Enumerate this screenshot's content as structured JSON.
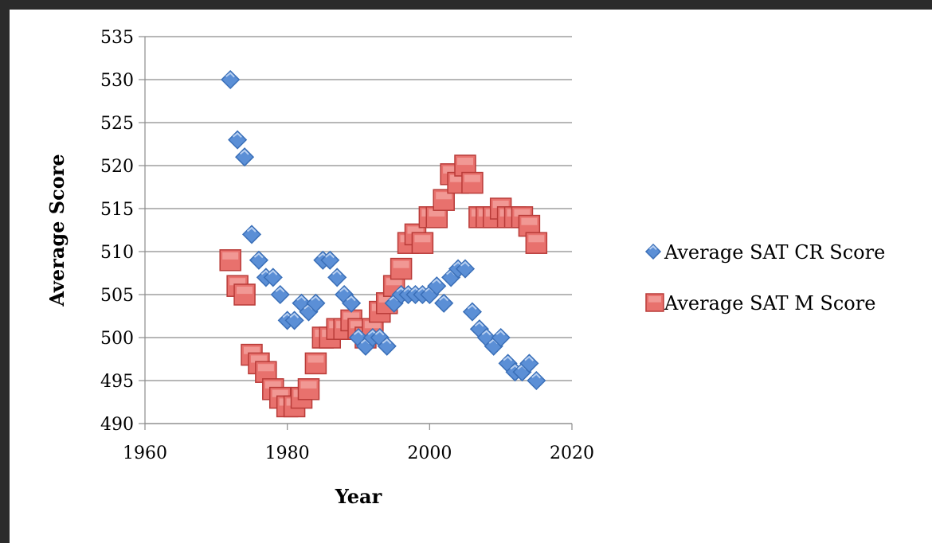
{
  "chart_data": {
    "type": "scatter",
    "title": "",
    "xlabel": "Year",
    "ylabel": "Average Score",
    "xlim": [
      1960,
      2020
    ],
    "ylim": [
      490,
      535
    ],
    "x_ticks": [
      1960,
      1980,
      2000,
      2020
    ],
    "y_ticks": [
      490,
      495,
      500,
      505,
      510,
      515,
      520,
      525,
      530,
      535
    ],
    "grid": "horizontal",
    "legend_position": "right",
    "series": [
      {
        "name": "Average SAT CR Score",
        "marker": "diamond",
        "color": "#5b8fd6",
        "points": [
          [
            1972,
            530
          ],
          [
            1973,
            523
          ],
          [
            1974,
            521
          ],
          [
            1975,
            512
          ],
          [
            1976,
            509
          ],
          [
            1977,
            507
          ],
          [
            1978,
            507
          ],
          [
            1979,
            505
          ],
          [
            1980,
            502
          ],
          [
            1981,
            502
          ],
          [
            1982,
            504
          ],
          [
            1983,
            503
          ],
          [
            1984,
            504
          ],
          [
            1985,
            509
          ],
          [
            1986,
            509
          ],
          [
            1987,
            507
          ],
          [
            1988,
            505
          ],
          [
            1989,
            504
          ],
          [
            1990,
            500
          ],
          [
            1991,
            499
          ],
          [
            1992,
            500
          ],
          [
            1993,
            500
          ],
          [
            1994,
            499
          ],
          [
            1995,
            504
          ],
          [
            1996,
            505
          ],
          [
            1997,
            505
          ],
          [
            1998,
            505
          ],
          [
            1999,
            505
          ],
          [
            2000,
            505
          ],
          [
            2001,
            506
          ],
          [
            2002,
            504
          ],
          [
            2003,
            507
          ],
          [
            2004,
            508
          ],
          [
            2005,
            508
          ],
          [
            2006,
            503
          ],
          [
            2007,
            501
          ],
          [
            2008,
            500
          ],
          [
            2009,
            499
          ],
          [
            2010,
            500
          ],
          [
            2011,
            497
          ],
          [
            2012,
            496
          ],
          [
            2013,
            496
          ],
          [
            2014,
            497
          ],
          [
            2015,
            495
          ]
        ]
      },
      {
        "name": "Average SAT M Score",
        "marker": "square",
        "color": "#e8716d",
        "points": [
          [
            1972,
            509
          ],
          [
            1973,
            506
          ],
          [
            1974,
            505
          ],
          [
            1975,
            498
          ],
          [
            1976,
            497
          ],
          [
            1977,
            496
          ],
          [
            1978,
            494
          ],
          [
            1979,
            493
          ],
          [
            1980,
            492
          ],
          [
            1981,
            492
          ],
          [
            1982,
            493
          ],
          [
            1983,
            494
          ],
          [
            1984,
            497
          ],
          [
            1985,
            500
          ],
          [
            1986,
            500
          ],
          [
            1987,
            501
          ],
          [
            1988,
            501
          ],
          [
            1989,
            502
          ],
          [
            1990,
            501
          ],
          [
            1991,
            500
          ],
          [
            1992,
            501
          ],
          [
            1993,
            503
          ],
          [
            1994,
            504
          ],
          [
            1995,
            506
          ],
          [
            1996,
            508
          ],
          [
            1997,
            511
          ],
          [
            1998,
            512
          ],
          [
            1999,
            511
          ],
          [
            2000,
            514
          ],
          [
            2001,
            514
          ],
          [
            2002,
            516
          ],
          [
            2003,
            519
          ],
          [
            2004,
            518
          ],
          [
            2005,
            520
          ],
          [
            2006,
            518
          ],
          [
            2007,
            514
          ],
          [
            2008,
            514
          ],
          [
            2009,
            514
          ],
          [
            2010,
            515
          ],
          [
            2011,
            514
          ],
          [
            2012,
            514
          ],
          [
            2013,
            514
          ],
          [
            2014,
            513
          ],
          [
            2015,
            511
          ]
        ]
      }
    ]
  }
}
